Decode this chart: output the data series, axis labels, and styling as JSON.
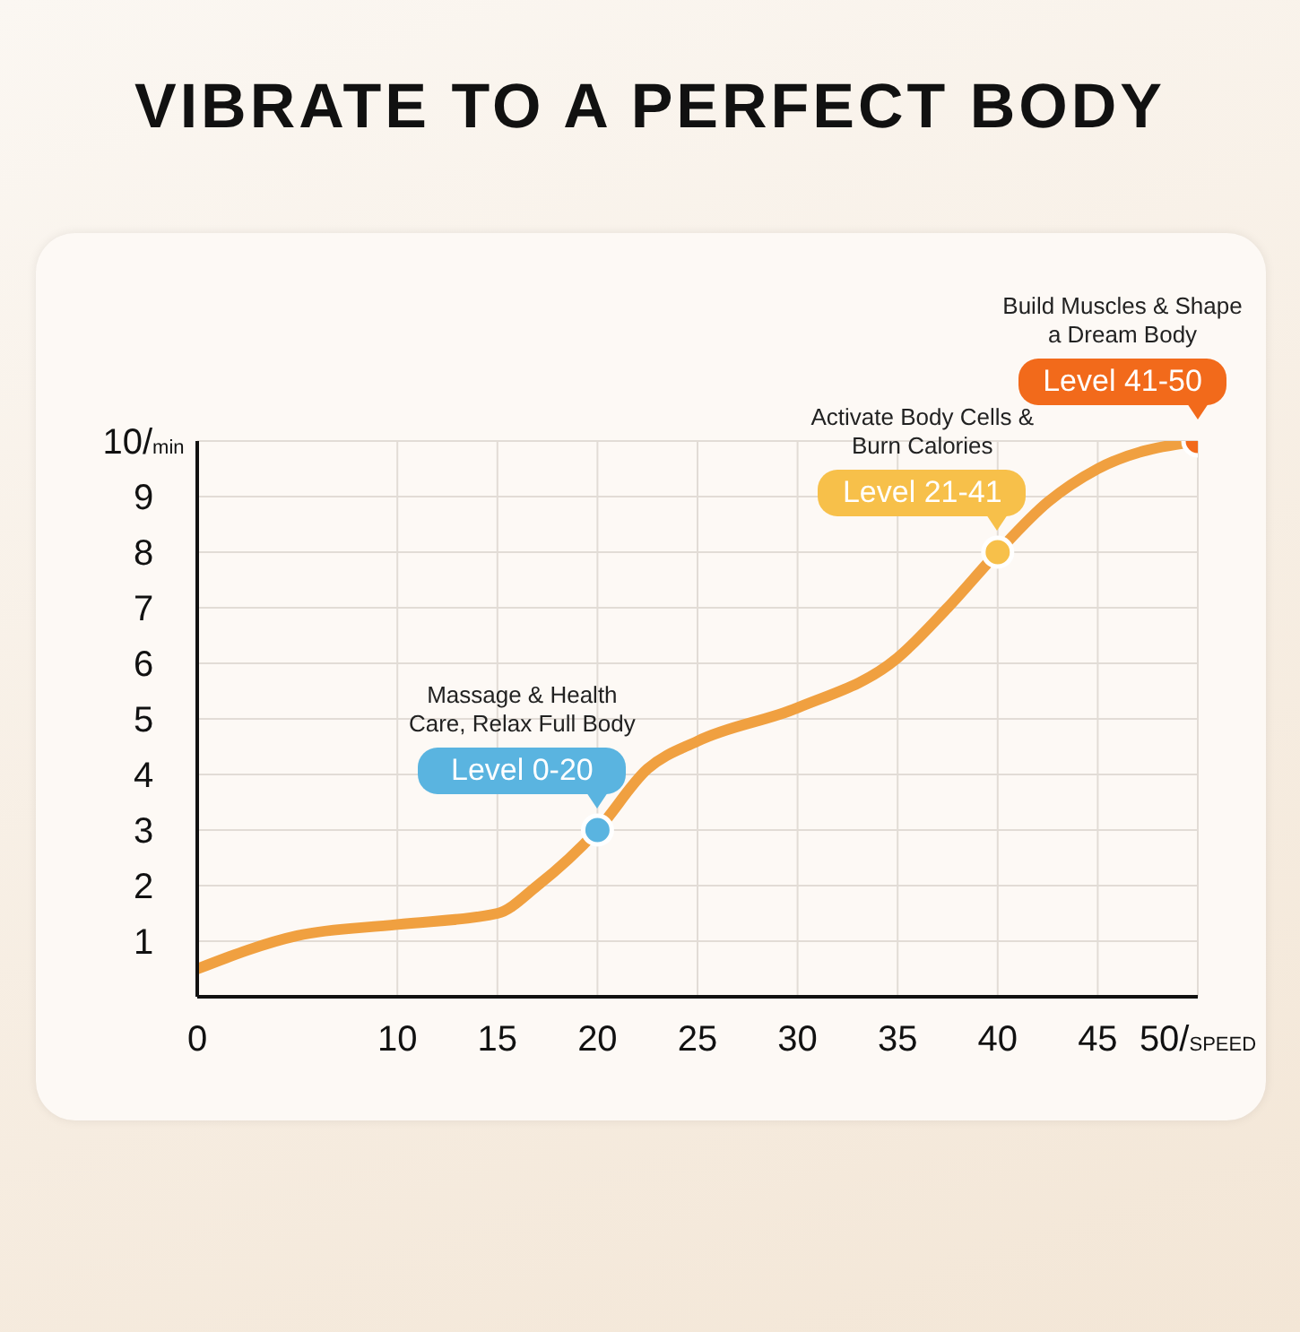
{
  "chart_data": {
    "type": "line",
    "title": "VIBRATE TO A PERFECT BODY",
    "xlim": [
      0,
      50
    ],
    "xticks": [
      0,
      10,
      15,
      20,
      25,
      30,
      35,
      40,
      45,
      {
        "value": 50,
        "label": "50/SPEED"
      }
    ],
    "ylim": [
      0,
      10
    ],
    "yticks": [
      1,
      2,
      3,
      4,
      5,
      6,
      7,
      8,
      9,
      {
        "value": 10,
        "label": "10/min"
      }
    ],
    "grid": true,
    "legend": false,
    "series": [
      {
        "type": "line",
        "color": "#f0a040",
        "marker": "none",
        "x": [
          0,
          5,
          10,
          15,
          17,
          20,
          22.5,
          25,
          30,
          35,
          37.5,
          40,
          42.5,
          45,
          50
        ],
        "values": [
          0.5,
          1.1,
          1.3,
          1.5,
          2.0,
          3,
          4.1,
          4.6,
          5.2,
          6.1,
          7.0,
          8,
          8.9,
          9.5,
          10
        ]
      },
      {
        "type": "scatter",
        "marker": "circle",
        "colors": [
          "#5ab4e0",
          "#f7c04a",
          "#f26a1b"
        ],
        "x": [
          20,
          40,
          50
        ],
        "values": [
          3,
          8,
          10
        ]
      }
    ],
    "annotations": [
      "Massage & Health Care, Relax Full Body",
      {
        "text": "Level 0-20",
        "x": 20,
        "y": 3
      },
      "Activate Body Cells & Burn Calories",
      {
        "text": "Level 21-41",
        "x": 40,
        "y": 8
      },
      "Build Muscles & Shape a Dream Body",
      {
        "text": "Level 41-50",
        "x": 50,
        "y": 10
      }
    ]
  }
}
